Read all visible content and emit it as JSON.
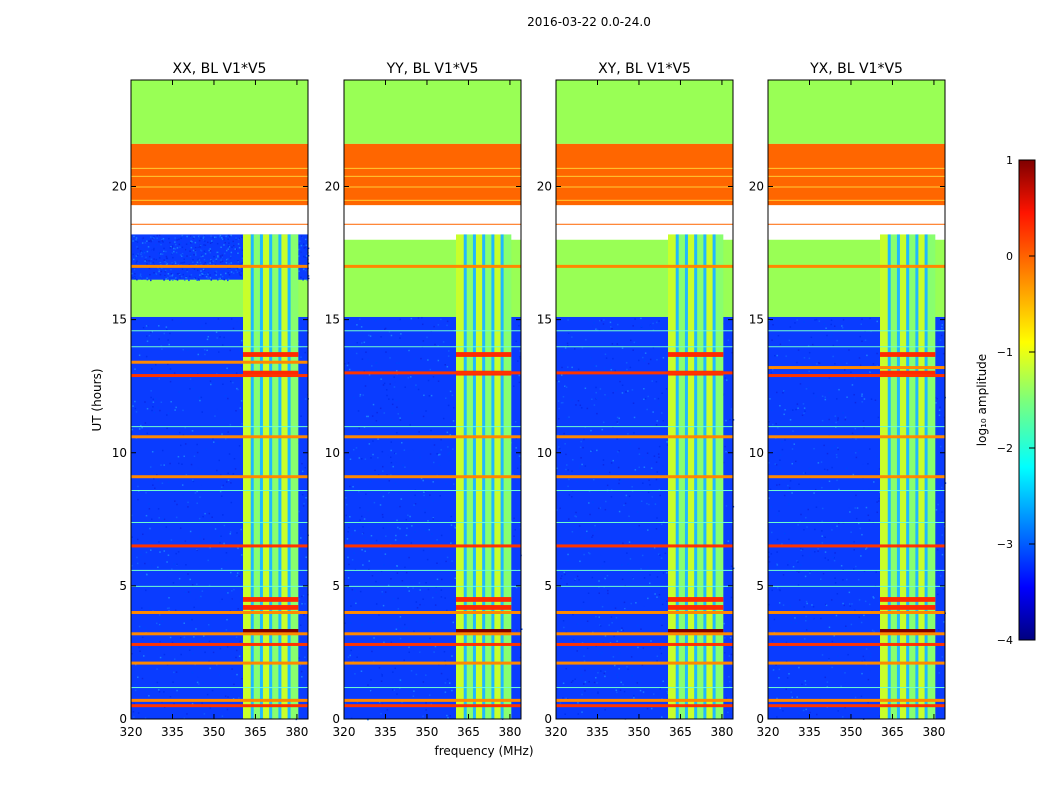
{
  "figure": {
    "suptitle": "2016-03-22 0.0-24.0",
    "xlabel": "frequency (MHz)",
    "ylabel": "UT (hours)"
  },
  "colorbar": {
    "label": "log₁₀ amplitude",
    "ticks": [
      1,
      0,
      -1,
      -2,
      -3,
      -4
    ],
    "tick_labels": [
      "1",
      "0",
      "−1",
      "−2",
      "−3",
      "−4"
    ],
    "range": [
      -4,
      1
    ],
    "colormap": "jet"
  },
  "chart_data": [
    {
      "type": "heatmap",
      "title": "XX, BL V1*V5",
      "xlabel": "frequency (MHz)",
      "ylabel": "UT (hours)",
      "xlim": [
        320,
        384
      ],
      "ylim": [
        0,
        24
      ],
      "xticks": [
        320,
        335,
        350,
        365,
        380
      ],
      "yticks": [
        0,
        5,
        10,
        15,
        20
      ],
      "zlim": [
        -4,
        1
      ],
      "regions": [
        {
          "name": "flagged",
          "y_range": [
            21.6,
            24.0
          ],
          "value": -0.9,
          "color": "#99ff55"
        },
        {
          "name": "flagged",
          "y_range": [
            19.3,
            21.6
          ],
          "value": 0.2,
          "color": "#ff6600"
        },
        {
          "name": "flagged",
          "y_range": [
            15.1,
            18.0
          ],
          "value": -0.9,
          "color": "#99ff55"
        },
        {
          "name": "noise",
          "y_range": [
            0.0,
            15.1
          ],
          "value": -3.0,
          "color": "#0a3cff"
        },
        {
          "name": "noise",
          "y_range": [
            16.5,
            18.2
          ],
          "value": -3.0,
          "color": "#0a3cff"
        },
        {
          "name": "rfi-band",
          "x_range": [
            360.5,
            380.5
          ],
          "y_range": [
            0.0,
            18.2
          ],
          "value": -1.3
        }
      ],
      "rfi_spikes_hours": [
        0.5,
        0.7,
        2.1,
        2.8,
        3.2,
        4.0,
        6.5,
        9.1,
        10.6,
        12.9,
        13.4,
        17.0
      ]
    },
    {
      "type": "heatmap",
      "title": "YY, BL V1*V5",
      "xlabel": "frequency (MHz)",
      "ylabel": "UT (hours)",
      "xlim": [
        320,
        384
      ],
      "ylim": [
        0,
        24
      ],
      "xticks": [
        320,
        335,
        350,
        365,
        380
      ],
      "yticks": [
        0,
        5,
        10,
        15,
        20
      ],
      "zlim": [
        -4,
        1
      ],
      "regions": [
        {
          "name": "flagged",
          "y_range": [
            21.6,
            24.0
          ],
          "value": -0.9,
          "color": "#99ff55"
        },
        {
          "name": "flagged",
          "y_range": [
            19.3,
            21.6
          ],
          "value": 0.2,
          "color": "#ff6600"
        },
        {
          "name": "flagged",
          "y_range": [
            15.1,
            18.0
          ],
          "value": -0.9,
          "color": "#99ff55"
        },
        {
          "name": "noise",
          "y_range": [
            0.0,
            15.1
          ],
          "value": -3.0,
          "color": "#0a3cff"
        },
        {
          "name": "rfi-band",
          "x_range": [
            360.5,
            380.5
          ],
          "y_range": [
            0.0,
            18.2
          ],
          "value": -1.3
        }
      ],
      "rfi_spikes_hours": [
        0.5,
        0.7,
        2.1,
        2.8,
        3.2,
        4.0,
        6.5,
        9.1,
        10.6,
        13.0,
        17.0
      ]
    },
    {
      "type": "heatmap",
      "title": "XY, BL V1*V5",
      "xlabel": "frequency (MHz)",
      "ylabel": "UT (hours)",
      "xlim": [
        320,
        384
      ],
      "ylim": [
        0,
        24
      ],
      "xticks": [
        320,
        335,
        350,
        365,
        380
      ],
      "yticks": [
        0,
        5,
        10,
        15,
        20
      ],
      "zlim": [
        -4,
        1
      ],
      "regions": [
        {
          "name": "flagged",
          "y_range": [
            21.6,
            24.0
          ],
          "value": -0.9,
          "color": "#99ff55"
        },
        {
          "name": "flagged",
          "y_range": [
            19.3,
            21.6
          ],
          "value": 0.2,
          "color": "#ff6600"
        },
        {
          "name": "flagged",
          "y_range": [
            15.1,
            18.0
          ],
          "value": -0.9,
          "color": "#99ff55"
        },
        {
          "name": "noise",
          "y_range": [
            0.0,
            15.1
          ],
          "value": -3.0,
          "color": "#0a3cff"
        },
        {
          "name": "rfi-band",
          "x_range": [
            360.5,
            380.5
          ],
          "y_range": [
            0.0,
            18.2
          ],
          "value": -1.3
        }
      ],
      "rfi_spikes_hours": [
        0.5,
        0.7,
        2.1,
        2.8,
        3.2,
        4.0,
        6.5,
        9.1,
        10.6,
        13.0,
        17.0
      ]
    },
    {
      "type": "heatmap",
      "title": "YX, BL V1*V5",
      "xlabel": "frequency (MHz)",
      "ylabel": "UT (hours)",
      "xlim": [
        320,
        384
      ],
      "ylim": [
        0,
        24
      ],
      "xticks": [
        320,
        335,
        350,
        365,
        380
      ],
      "yticks": [
        0,
        5,
        10,
        15,
        20
      ],
      "zlim": [
        -4,
        1
      ],
      "regions": [
        {
          "name": "flagged",
          "y_range": [
            21.6,
            24.0
          ],
          "value": -0.9,
          "color": "#99ff55"
        },
        {
          "name": "flagged",
          "y_range": [
            19.3,
            21.6
          ],
          "value": 0.2,
          "color": "#ff6600"
        },
        {
          "name": "flagged",
          "y_range": [
            15.1,
            18.0
          ],
          "value": -0.9,
          "color": "#99ff55"
        },
        {
          "name": "noise",
          "y_range": [
            0.0,
            15.1
          ],
          "value": -3.0,
          "color": "#0a3cff"
        },
        {
          "name": "rfi-band",
          "x_range": [
            360.5,
            380.5
          ],
          "y_range": [
            0.0,
            18.2
          ],
          "value": -1.3
        }
      ],
      "rfi_spikes_hours": [
        0.5,
        0.7,
        2.1,
        2.8,
        3.2,
        4.0,
        6.5,
        9.1,
        10.6,
        12.9,
        13.2,
        17.0
      ]
    }
  ]
}
